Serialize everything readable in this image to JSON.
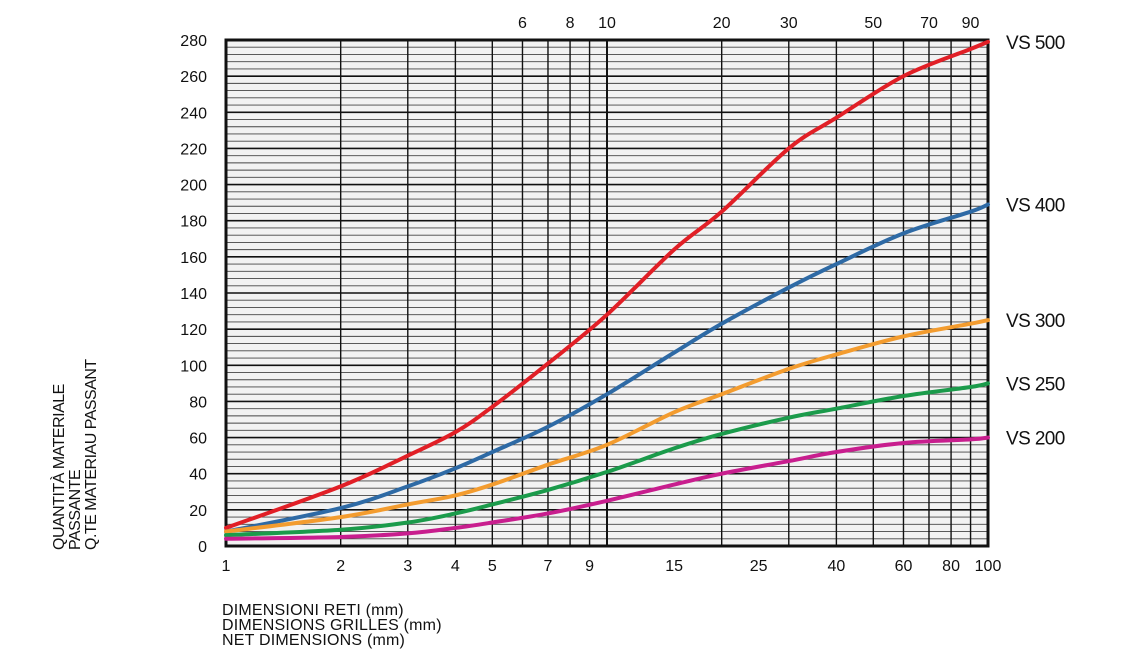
{
  "chart_data": {
    "type": "line",
    "title": "",
    "xlabel_lines": [
      "DIMENSIONI RETI (mm)",
      "DIMENSIONS GRILLES (mm)",
      "NET DIMENSIONS (mm)"
    ],
    "ylabel_lines": [
      "QUANTITÀ MATERIALE",
      "PASSANTE",
      "Q.TE MATERIAU PASSANT"
    ],
    "x_scale": "log",
    "xlim": [
      1,
      100
    ],
    "ylim": [
      0,
      280
    ],
    "grid": true,
    "x_ticks_bottom": [
      {
        "v": 1,
        "label": "1"
      },
      {
        "v": 2,
        "label": "2"
      },
      {
        "v": 3,
        "label": "3"
      },
      {
        "v": 4,
        "label": "4"
      },
      {
        "v": 5,
        "label": "5"
      },
      {
        "v": 7,
        "label": "7"
      },
      {
        "v": 9,
        "label": "9"
      },
      {
        "v": 15,
        "label": "15"
      },
      {
        "v": 25,
        "label": "25"
      },
      {
        "v": 40,
        "label": "40"
      },
      {
        "v": 60,
        "label": "60"
      },
      {
        "v": 80,
        "label": "80"
      },
      {
        "v": 100,
        "label": "100"
      }
    ],
    "x_ticks_top": [
      {
        "v": 6,
        "label": "6"
      },
      {
        "v": 8,
        "label": "8"
      },
      {
        "v": 10,
        "label": "10"
      },
      {
        "v": 20,
        "label": "20"
      },
      {
        "v": 30,
        "label": "30"
      },
      {
        "v": 50,
        "label": "50"
      },
      {
        "v": 70,
        "label": "70"
      },
      {
        "v": 90,
        "label": "90"
      }
    ],
    "y_ticks": [
      "0",
      "20",
      "40",
      "60",
      "80",
      "100",
      "120",
      "140",
      "160",
      "180",
      "200",
      "220",
      "240",
      "260",
      "280"
    ],
    "series": [
      {
        "name": "VS 500",
        "color": "#e11f26",
        "x": [
          1,
          2,
          3,
          4,
          5,
          7,
          10,
          15,
          20,
          30,
          40,
          60,
          90,
          100
        ],
        "y": [
          10,
          33,
          50,
          63,
          77,
          101,
          128,
          164,
          185,
          220,
          237,
          260,
          275,
          279
        ]
      },
      {
        "name": "VS 400",
        "color": "#2e6aa5",
        "x": [
          1,
          2,
          3,
          4,
          5,
          7,
          10,
          15,
          20,
          30,
          40,
          60,
          90,
          100
        ],
        "y": [
          8,
          21,
          33,
          43,
          52,
          66,
          84,
          107,
          123,
          143,
          156,
          173,
          185,
          189
        ]
      },
      {
        "name": "VS 300",
        "color": "#f39c2f",
        "x": [
          1,
          2,
          3,
          4,
          5,
          7,
          10,
          15,
          20,
          30,
          40,
          60,
          90,
          100
        ],
        "y": [
          8,
          16,
          23,
          28,
          34,
          45,
          56,
          74,
          84,
          98,
          106,
          116,
          123,
          125
        ]
      },
      {
        "name": "VS 250",
        "color": "#1b9b4b",
        "x": [
          1,
          2,
          3,
          4,
          5,
          7,
          10,
          15,
          20,
          30,
          40,
          60,
          90,
          100
        ],
        "y": [
          6,
          9,
          13,
          18,
          23,
          31,
          41,
          54,
          62,
          71,
          76,
          83,
          88,
          90
        ]
      },
      {
        "name": "VS 200",
        "color": "#c81e8e",
        "x": [
          1,
          2,
          3,
          4,
          5,
          7,
          10,
          15,
          20,
          30,
          40,
          60,
          90,
          100
        ],
        "y": [
          4,
          5,
          7,
          10,
          13,
          18,
          25,
          34,
          40,
          47,
          52,
          57,
          59,
          60
        ]
      }
    ]
  }
}
